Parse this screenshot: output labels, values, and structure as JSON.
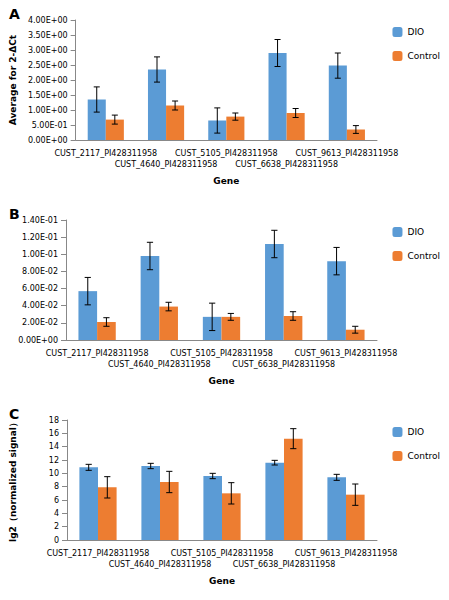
{
  "chart_data": [
    {
      "type": "bar",
      "title": "A",
      "x_label": "Gene",
      "y_label": "Average for 2-ΔCt",
      "categories": [
        "CUST_2117_PI428311958",
        "CUST_4640_PI428311958",
        "CUST_5105_PI428311958",
        "CUST_6638_PI428311958",
        "CUST_9613_PI428311958"
      ],
      "series": [
        {
          "name": "DIO",
          "color": "#5b9bd5",
          "values": [
            1.35,
            2.35,
            0.65,
            2.9,
            2.48
          ],
          "errors": [
            0.42,
            0.42,
            0.42,
            0.45,
            0.42
          ]
        },
        {
          "name": "Control",
          "color": "#ed7d31",
          "values": [
            0.68,
            1.15,
            0.78,
            0.9,
            0.35
          ],
          "errors": [
            0.15,
            0.15,
            0.12,
            0.15,
            0.13
          ]
        }
      ],
      "ylim": [
        0,
        4
      ],
      "yticks": [
        {
          "value": 0,
          "label": "0.00E+00"
        },
        {
          "value": 0.5,
          "label": "5.00E-01"
        },
        {
          "value": 1,
          "label": "1.00E+00"
        },
        {
          "value": 1.5,
          "label": "1.50E+00"
        },
        {
          "value": 2,
          "label": "2.00E+00"
        },
        {
          "value": 2.5,
          "label": "2.50E+00"
        },
        {
          "value": 3,
          "label": "3.00E+00"
        },
        {
          "value": 3.5,
          "label": "3.50E+00"
        },
        {
          "value": 4,
          "label": "4.00E+00"
        }
      ],
      "grid": false,
      "legend": "right"
    },
    {
      "type": "bar",
      "title": "B",
      "x_label": "Gene",
      "categories": [
        "CUST_2117_PI428311958",
        "CUST_4640_PI428311958",
        "CUST_5105_PI428311958",
        "CUST_6638_PI428311958",
        "CUST_9613_PI428311958"
      ],
      "series": [
        {
          "name": "DIO",
          "color": "#5b9bd5",
          "values": [
            0.057,
            0.098,
            0.027,
            0.112,
            0.092
          ],
          "errors": [
            0.016,
            0.016,
            0.016,
            0.016,
            0.016
          ]
        },
        {
          "name": "Control",
          "color": "#ed7d31",
          "values": [
            0.021,
            0.039,
            0.027,
            0.028,
            0.012
          ],
          "errors": [
            0.005,
            0.005,
            0.004,
            0.005,
            0.004
          ]
        }
      ],
      "ylim": [
        0,
        0.14
      ],
      "yticks": [
        {
          "value": 0,
          "label": "0.00E+00"
        },
        {
          "value": 0.02,
          "label": "2.00E-02"
        },
        {
          "value": 0.04,
          "label": "4.00E-02"
        },
        {
          "value": 0.06,
          "label": "6.00E-02"
        },
        {
          "value": 0.08,
          "label": "8.00E-02"
        },
        {
          "value": 0.1,
          "label": "1.00E-01"
        },
        {
          "value": 0.12,
          "label": "1.20E-01"
        },
        {
          "value": 0.14,
          "label": "1.40E-01"
        }
      ],
      "grid": false,
      "legend": "right"
    },
    {
      "type": "bar",
      "title": "C",
      "x_label": "Gene",
      "y_label": "lg2（normalized signal）",
      "categories": [
        "CUST_2117_PI428311958",
        "CUST_4640_PI428311958",
        "CUST_5105_PI428311958",
        "CUST_6638_PI428311958",
        "CUST_9613_PI428311958"
      ],
      "series": [
        {
          "name": "DIO",
          "color": "#5b9bd5",
          "values": [
            10.9,
            11.1,
            9.6,
            11.6,
            9.4
          ],
          "errors": [
            0.45,
            0.4,
            0.4,
            0.35,
            0.45
          ]
        },
        {
          "name": "Control",
          "color": "#ed7d31",
          "values": [
            7.9,
            8.7,
            7.0,
            15.2,
            6.8
          ],
          "errors": [
            1.6,
            1.6,
            1.6,
            1.5,
            1.6
          ]
        }
      ],
      "ylim": [
        0,
        18
      ],
      "yticks": [
        0,
        2,
        4,
        6,
        8,
        10,
        12,
        14,
        16,
        18
      ],
      "grid": false,
      "legend": "right"
    }
  ]
}
